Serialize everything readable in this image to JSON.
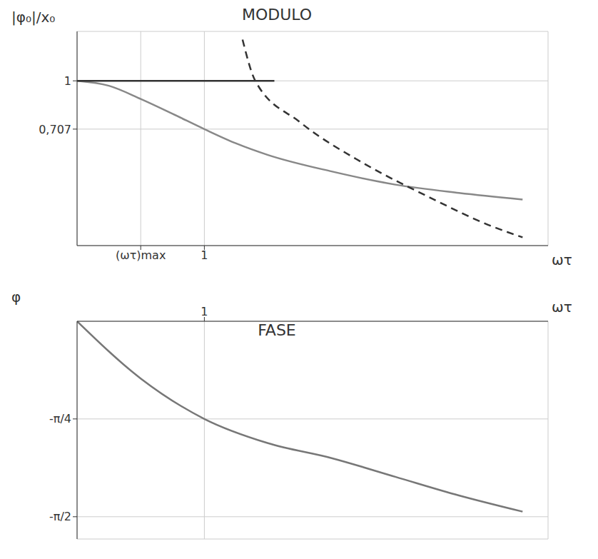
{
  "chart_data": [
    {
      "type": "line",
      "title": "MODULO",
      "x_label": "ωτ",
      "y_label": "|φ₀|/x₀",
      "xlim": [
        0,
        3.7
      ],
      "ylim": [
        0,
        1.3
      ],
      "xticks": [
        {
          "value": 0.5,
          "label": "(ωτ)max"
        },
        1
      ],
      "yticks": [
        {
          "value": 0.707,
          "label": "0,707"
        },
        1
      ],
      "grid": true,
      "series": [
        {
          "color": "#888888",
          "line_style": "solid",
          "x": [
            0,
            0.25,
            0.5,
            0.75,
            1,
            1.25,
            1.5,
            2,
            2.5,
            3,
            3.5
          ],
          "values": [
            1,
            0.97,
            0.89,
            0.8,
            0.707,
            0.62,
            0.55,
            0.45,
            0.37,
            0.32,
            0.28
          ]
        },
        {
          "color": "#333333",
          "line_style": "solid",
          "x": [
            0,
            1.55
          ],
          "values": [
            1,
            1
          ]
        },
        {
          "color": "#333333",
          "line_style": "dashed",
          "x": [
            1.3,
            1.4,
            1.75,
            2.25,
            2.75,
            3.25,
            3.5
          ],
          "values": [
            1.25,
            1.0,
            0.75,
            0.5,
            0.3,
            0.12,
            0.05
          ]
        }
      ]
    },
    {
      "type": "line",
      "title": "FASE",
      "x_label": "ωτ",
      "y_label": "φ",
      "xlim": [
        0,
        3.7
      ],
      "ylim": [
        -1.75,
        0
      ],
      "xticks": [
        1
      ],
      "yticks": [
        {
          "value": -1.571,
          "label": "-π/2"
        },
        {
          "value": -0.785,
          "label": "-π/4"
        }
      ],
      "grid": true,
      "series": [
        {
          "color": "#777777",
          "line_style": "solid",
          "x": [
            0,
            0.5,
            1,
            1.5,
            2,
            2.5,
            3,
            3.5
          ],
          "values": [
            0,
            -0.46,
            -0.785,
            -0.98,
            -1.1,
            -1.25,
            -1.4,
            -1.53
          ]
        }
      ]
    }
  ]
}
